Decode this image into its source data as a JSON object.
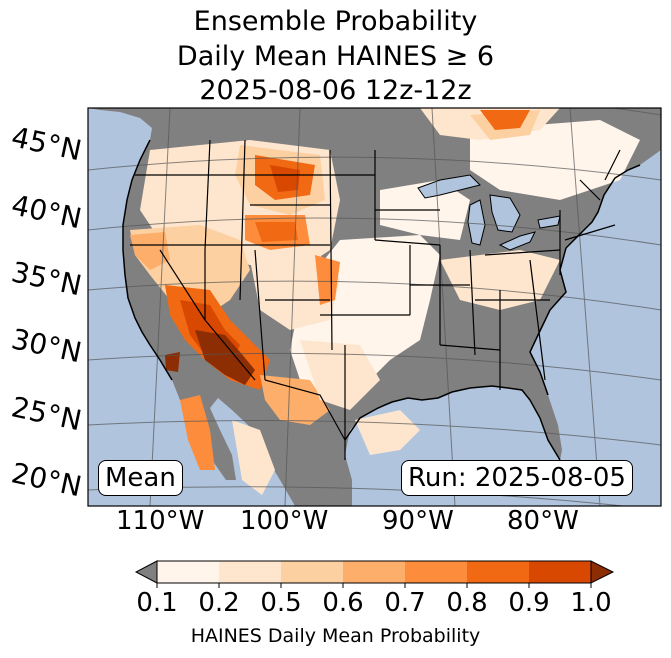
{
  "title": {
    "line1": "Ensemble Probability",
    "line2": "Daily Mean HAINES ≥ 6",
    "line3": "2025-08-06 12z-12z"
  },
  "labels": {
    "stat": "Mean",
    "run": "Run: 2025-08-05"
  },
  "lat_labels": [
    "45°N",
    "40°N",
    "35°N",
    "30°N",
    "25°N",
    "20°N"
  ],
  "lon_labels": [
    "110°W",
    "100°W",
    "90°W",
    "80°W"
  ],
  "colorbar": {
    "title": "HAINES Daily Mean Probability",
    "ticks": [
      "0.1",
      "0.2",
      "0.5",
      "0.6",
      "0.7",
      "0.8",
      "0.9",
      "1.0"
    ],
    "colors": [
      "#fff5eb",
      "#fee6ce",
      "#fdd0a2",
      "#fdae6b",
      "#fd8d3c",
      "#f16913",
      "#d94801",
      "#8c2d04"
    ],
    "under_color": "#808080"
  },
  "map_colors": {
    "ocean": "#b0c4de",
    "land_below": "#808080",
    "lake": "#b0c4de",
    "border": "#000000",
    "grid": "#555555"
  }
}
